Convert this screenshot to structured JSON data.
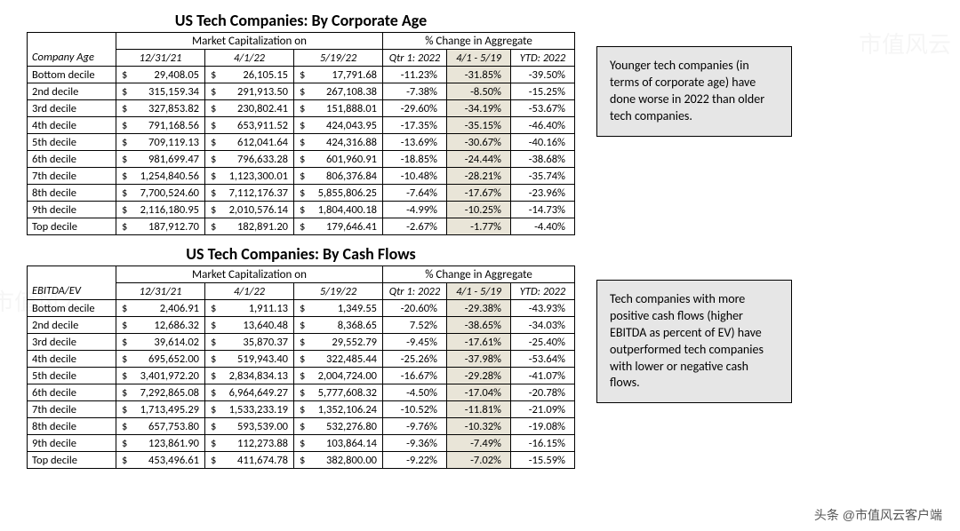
{
  "watermarks": {
    "corner": "头条 @市值风云客户端",
    "faint": "市值风云"
  },
  "table1": {
    "title": "US Tech Companies: By Corporate Age",
    "group_mktcap": "Market Capitalization on",
    "group_change": "% Change in Aggregate",
    "rowlabel_header": "Company Age",
    "col_dates": [
      "12/31/21",
      "4/1/22",
      "5/19/22"
    ],
    "col_change": [
      "Qtr 1: 2022",
      "4/1 - 5/19",
      "YTD: 2022"
    ],
    "note": "Younger tech companies (in terms of corporate age) have done worse in 2022 than older tech companies.",
    "rows": [
      {
        "label": "Bottom decile",
        "mc": [
          "29,408.05",
          "26,105.15",
          "17,791.68"
        ],
        "pc": [
          "-11.23%",
          "-31.85%",
          "-39.50%"
        ]
      },
      {
        "label": "2nd decile",
        "mc": [
          "315,159.34",
          "291,913.50",
          "267,108.38"
        ],
        "pc": [
          "-7.38%",
          "-8.50%",
          "-15.25%"
        ]
      },
      {
        "label": "3rd decile",
        "mc": [
          "327,853.82",
          "230,802.41",
          "151,888.01"
        ],
        "pc": [
          "-29.60%",
          "-34.19%",
          "-53.67%"
        ]
      },
      {
        "label": "4th decile",
        "mc": [
          "791,168.56",
          "653,911.52",
          "424,043.95"
        ],
        "pc": [
          "-17.35%",
          "-35.15%",
          "-46.40%"
        ]
      },
      {
        "label": "5th decile",
        "mc": [
          "709,119.13",
          "612,041.64",
          "424,316.88"
        ],
        "pc": [
          "-13.69%",
          "-30.67%",
          "-40.16%"
        ]
      },
      {
        "label": "6th decile",
        "mc": [
          "981,699.47",
          "796,633.28",
          "601,960.91"
        ],
        "pc": [
          "-18.85%",
          "-24.44%",
          "-38.68%"
        ]
      },
      {
        "label": "7th decile",
        "mc": [
          "1,254,840.56",
          "1,123,300.01",
          "806,376.84"
        ],
        "pc": [
          "-10.48%",
          "-28.21%",
          "-35.74%"
        ]
      },
      {
        "label": "8th decile",
        "mc": [
          "7,700,524.60",
          "7,112,176.37",
          "5,855,806.25"
        ],
        "pc": [
          "-7.64%",
          "-17.67%",
          "-23.96%"
        ]
      },
      {
        "label": "9th decile",
        "mc": [
          "2,116,180.95",
          "2,010,576.14",
          "1,804,400.18"
        ],
        "pc": [
          "-4.99%",
          "-10.25%",
          "-14.73%"
        ]
      },
      {
        "label": "Top decile",
        "mc": [
          "187,912.70",
          "182,891.20",
          "179,646.41"
        ],
        "pc": [
          "-2.67%",
          "-1.77%",
          "-4.40%"
        ]
      }
    ]
  },
  "table2": {
    "title": "US Tech Companies: By Cash Flows",
    "group_mktcap": "Market Capitalization on",
    "group_change": "% Change in Aggregate",
    "rowlabel_header": "EBITDA/EV",
    "col_dates": [
      "12/31/21",
      "4/1/22",
      "5/19/22"
    ],
    "col_change": [
      "Qtr 1: 2022",
      "4/1 - 5/19",
      "YTD: 2022"
    ],
    "note": "Tech companies with more positive cash flows (higher EBITDA as percent of EV) have outperformed tech companies with lower or negative cash flows.",
    "rows": [
      {
        "label": "Bottom decile",
        "mc": [
          "2,406.91",
          "1,911.13",
          "1,349.55"
        ],
        "pc": [
          "-20.60%",
          "-29.38%",
          "-43.93%"
        ]
      },
      {
        "label": "2nd decile",
        "mc": [
          "12,686.32",
          "13,640.48",
          "8,368.65"
        ],
        "pc": [
          "7.52%",
          "-38.65%",
          "-34.03%"
        ]
      },
      {
        "label": "3rd decile",
        "mc": [
          "39,614.02",
          "35,870.37",
          "29,552.79"
        ],
        "pc": [
          "-9.45%",
          "-17.61%",
          "-25.40%"
        ]
      },
      {
        "label": "4th decile",
        "mc": [
          "695,652.00",
          "519,943.40",
          "322,485.44"
        ],
        "pc": [
          "-25.26%",
          "-37.98%",
          "-53.64%"
        ]
      },
      {
        "label": "5th decile",
        "mc": [
          "3,401,972.20",
          "2,834,834.13",
          "2,004,724.00"
        ],
        "pc": [
          "-16.67%",
          "-29.28%",
          "-41.07%"
        ]
      },
      {
        "label": "6th decile",
        "mc": [
          "7,292,865.08",
          "6,964,649.27",
          "5,777,608.32"
        ],
        "pc": [
          "-4.50%",
          "-17.04%",
          "-20.78%"
        ]
      },
      {
        "label": "7th decile",
        "mc": [
          "1,713,495.29",
          "1,533,233.19",
          "1,352,106.24"
        ],
        "pc": [
          "-10.52%",
          "-11.81%",
          "-21.09%"
        ]
      },
      {
        "label": "8th decile",
        "mc": [
          "657,753.80",
          "593,539.00",
          "532,276.80"
        ],
        "pc": [
          "-9.76%",
          "-10.32%",
          "-19.08%"
        ]
      },
      {
        "label": "9th decile",
        "mc": [
          "123,861.90",
          "112,273.88",
          "103,864.14"
        ],
        "pc": [
          "-9.36%",
          "-7.49%",
          "-16.15%"
        ]
      },
      {
        "label": "Top decile",
        "mc": [
          "453,496.61",
          "411,674.78",
          "382,800.00"
        ],
        "pc": [
          "-9.22%",
          "-7.02%",
          "-15.59%"
        ]
      }
    ]
  }
}
